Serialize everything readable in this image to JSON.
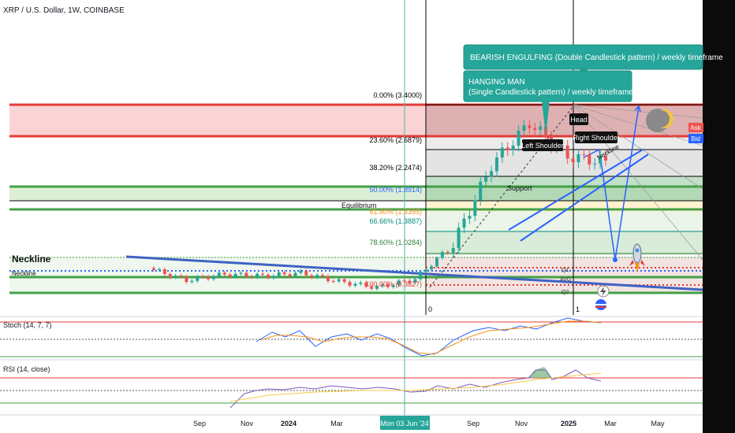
{
  "header": {
    "title": "XRP / U.S. Dollar, 1W, COINBASE"
  },
  "colors": {
    "bull": "#26a69a",
    "bear": "#ef5350",
    "red_line": "#e53935",
    "green_line": "#43a047",
    "blue": "#2962ff",
    "orange": "#f7931a",
    "callout": "#26a69a",
    "cursor": "#4db6ac"
  },
  "fib_levels": [
    {
      "label": "0.00% (3.4000)",
      "price": 3.4,
      "color": "#000000"
    },
    {
      "label": "23.60% (2.6879)",
      "price": 2.6879,
      "color": "#000000"
    },
    {
      "label": "38.20% (2.2474)",
      "price": 2.2474,
      "color": "#000000"
    },
    {
      "label": "50.00% (1.8914)",
      "price": 1.8914,
      "color": "#2962ff"
    },
    {
      "label": "61.80% (1.5355)",
      "price": 1.5355,
      "color": "#f7931a"
    },
    {
      "label": "66.66% (1.3887)",
      "price": 1.3887,
      "color": "#00897b"
    },
    {
      "label": "78.60% (1.0284)",
      "price": 1.0284,
      "color": "#2e7d32"
    },
    {
      "label": "100.00% (0.3827)",
      "price": 0.3827,
      "color": "#e53935"
    }
  ],
  "annotations": {
    "bearish_engulfing": "BEARISH ENGULFING (Double Candlestick pattern) / weekly timeframe",
    "hanging_man_line1": "HANGING MAN",
    "hanging_man_line2": "(Single Candlestick pattern) / weekly timeframe",
    "left_shoulder": "Left Shoulder",
    "head": "Head",
    "right_shoulder": "Right Shoulder",
    "neckline_small": "Neckline",
    "neckline_left": "Neckline",
    "neckline_left_small": "Neckline",
    "support": "Support",
    "equilibrium": "Equilibrium",
    "q1": "Q1",
    "avg": "AVG",
    "q2": "Q2",
    "marker_zero": "0",
    "marker_one": "1",
    "ask": "Ask",
    "bid": "Bid"
  },
  "oscillators": {
    "stoch_label": "Stoch (14, 7, 7)",
    "rsi_label": "RSI (14, close)"
  },
  "time_axis": {
    "labels": [
      "Sep",
      "Nov",
      "2024",
      "Mar",
      "Sep",
      "Nov",
      "2025",
      "Mar",
      "May"
    ],
    "cursor_label": "Mon 03 Jun '24"
  },
  "chart_data": {
    "type": "candlestick",
    "title": "XRP / U.S. Dollar, 1W, COINBASE",
    "y_range": [
      0.3,
      3.75
    ],
    "x_ticks": [
      "Sep",
      "Nov",
      "2024",
      "Mar",
      "Sep",
      "Nov",
      "2025",
      "Mar",
      "May"
    ],
    "price_path": [
      {
        "t": "Jul 2023",
        "close": 0.7
      },
      {
        "t": "Sep 2023",
        "close": 0.5
      },
      {
        "t": "Nov 2023",
        "close": 0.6
      },
      {
        "t": "Jan 2024",
        "close": 0.57
      },
      {
        "t": "Mar 2024",
        "close": 0.62
      },
      {
        "t": "Jun 2024",
        "close": 0.48
      },
      {
        "t": "Aug 2024",
        "close": 0.38
      },
      {
        "t": "Oct 2024",
        "close": 0.52
      },
      {
        "t": "Nov 2024",
        "close": 1.1
      },
      {
        "t": "Dec 2024",
        "close": 2.4
      },
      {
        "t": "Jan 2025",
        "close": 3.1
      },
      {
        "t": "Feb 2025",
        "close": 2.55
      },
      {
        "t": "Mar 2025",
        "close": 2.45
      }
    ],
    "zones": [
      {
        "name": "resistance",
        "from": 2.69,
        "to": 3.4
      },
      {
        "name": "support",
        "from": 1.53,
        "to": 1.89
      }
    ],
    "oscillators": [
      "Stoch (14, 7, 7)",
      "RSI (14, close)"
    ]
  }
}
